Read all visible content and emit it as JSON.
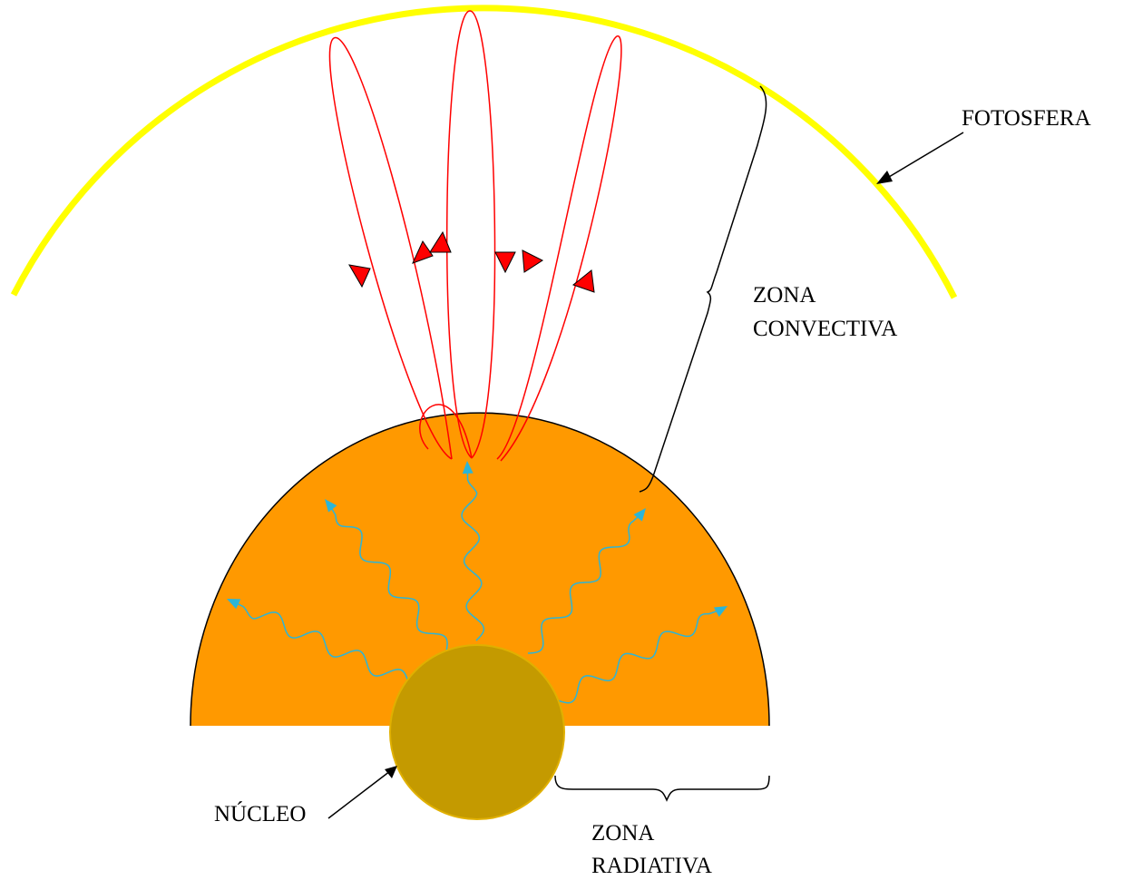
{
  "labels": {
    "photosphere": "FOTOSFERA",
    "convective_zone": [
      "ZONA",
      "CONVECTIVA"
    ],
    "core": "NÚCLEO",
    "radiative_zone": [
      "ZONA",
      "RADIATIVA"
    ]
  }
}
